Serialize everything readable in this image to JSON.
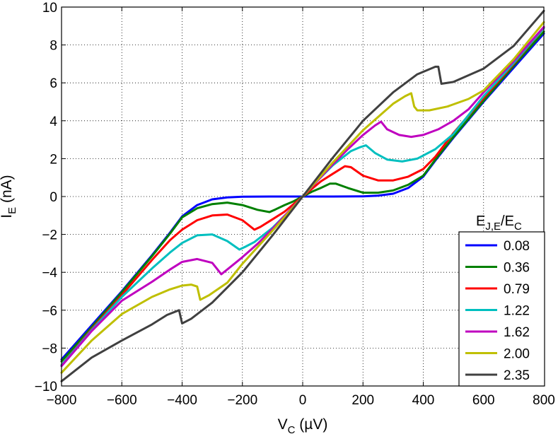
{
  "chart_data": {
    "type": "line",
    "title": "",
    "xlabel": {
      "main": "V",
      "sub": "C",
      "unit": " (µV)"
    },
    "ylabel": {
      "main": "I",
      "sub": "E",
      "unit": " (nA)"
    },
    "xlim": [
      -800,
      800
    ],
    "ylim": [
      -10,
      10
    ],
    "xticks": [
      -800,
      -600,
      -400,
      -200,
      0,
      200,
      400,
      600,
      800
    ],
    "yticks": [
      -10,
      -8,
      -6,
      -4,
      -2,
      0,
      2,
      4,
      6,
      8,
      10
    ],
    "xtick_labels": [
      "−800",
      "−600",
      "−400",
      "−200",
      "0",
      "200",
      "400",
      "600",
      "800"
    ],
    "ytick_labels": [
      "−10",
      "−8",
      "−6",
      "−4",
      "−2",
      "0",
      "2",
      "4",
      "6",
      "8",
      "10"
    ],
    "grid": true,
    "legend": {
      "placement": "bottom-right",
      "title": {
        "main": "E",
        "sub1": "J,E",
        "slash": "/E",
        "sub2": "C"
      }
    },
    "series": [
      {
        "name": "0.08",
        "color": "#0000ff",
        "points": [
          [
            -800,
            -8.6
          ],
          [
            -700,
            -6.8
          ],
          [
            -600,
            -5.0
          ],
          [
            -500,
            -3.1
          ],
          [
            -440,
            -1.9
          ],
          [
            -400,
            -1.05
          ],
          [
            -350,
            -0.45
          ],
          [
            -300,
            -0.15
          ],
          [
            -250,
            -0.05
          ],
          [
            -200,
            -0.01
          ],
          [
            -100,
            0
          ],
          [
            0,
            0
          ],
          [
            100,
            0
          ],
          [
            200,
            0.01
          ],
          [
            250,
            0.05
          ],
          [
            300,
            0.15
          ],
          [
            350,
            0.45
          ],
          [
            400,
            1.05
          ],
          [
            440,
            1.9
          ],
          [
            500,
            3.1
          ],
          [
            600,
            5.0
          ],
          [
            700,
            6.8
          ],
          [
            800,
            8.6
          ]
        ]
      },
      {
        "name": "0.36",
        "color": "#008000",
        "points": [
          [
            -800,
            -8.7
          ],
          [
            -700,
            -6.9
          ],
          [
            -600,
            -5.05
          ],
          [
            -500,
            -3.15
          ],
          [
            -440,
            -1.95
          ],
          [
            -400,
            -1.1
          ],
          [
            -350,
            -0.62
          ],
          [
            -300,
            -0.4
          ],
          [
            -250,
            -0.32
          ],
          [
            -200,
            -0.45
          ],
          [
            -150,
            -0.7
          ],
          [
            -110,
            -0.82
          ],
          [
            -90,
            -0.68
          ],
          [
            -60,
            -0.45
          ],
          [
            -30,
            -0.25
          ],
          [
            0,
            0
          ],
          [
            30,
            0.25
          ],
          [
            60,
            0.45
          ],
          [
            90,
            0.68
          ],
          [
            110,
            0.68
          ],
          [
            150,
            0.45
          ],
          [
            200,
            0.2
          ],
          [
            250,
            0.2
          ],
          [
            300,
            0.32
          ],
          [
            350,
            0.62
          ],
          [
            400,
            1.1
          ],
          [
            440,
            1.95
          ],
          [
            500,
            3.15
          ],
          [
            600,
            5.05
          ],
          [
            700,
            6.9
          ],
          [
            800,
            8.7
          ]
        ]
      },
      {
        "name": "0.79",
        "color": "#ff0000",
        "points": [
          [
            -800,
            -8.9
          ],
          [
            -700,
            -7.0
          ],
          [
            -600,
            -5.2
          ],
          [
            -500,
            -3.35
          ],
          [
            -440,
            -2.3
          ],
          [
            -400,
            -1.75
          ],
          [
            -350,
            -1.25
          ],
          [
            -300,
            -1.0
          ],
          [
            -250,
            -0.95
          ],
          [
            -200,
            -1.25
          ],
          [
            -160,
            -1.75
          ],
          [
            -140,
            -1.6
          ],
          [
            -100,
            -1.2
          ],
          [
            -60,
            -0.8
          ],
          [
            -30,
            -0.4
          ],
          [
            0,
            0
          ],
          [
            30,
            0.4
          ],
          [
            60,
            0.8
          ],
          [
            100,
            1.2
          ],
          [
            140,
            1.6
          ],
          [
            160,
            1.55
          ],
          [
            200,
            1.1
          ],
          [
            250,
            0.85
          ],
          [
            300,
            0.85
          ],
          [
            350,
            1.05
          ],
          [
            400,
            1.45
          ],
          [
            440,
            2.1
          ],
          [
            500,
            3.35
          ],
          [
            600,
            5.2
          ],
          [
            700,
            7.0
          ],
          [
            800,
            8.9
          ]
        ]
      },
      {
        "name": "1.22",
        "color": "#00bfbf",
        "points": [
          [
            -800,
            -8.9
          ],
          [
            -700,
            -7.05
          ],
          [
            -600,
            -5.3
          ],
          [
            -500,
            -3.8
          ],
          [
            -440,
            -2.95
          ],
          [
            -400,
            -2.45
          ],
          [
            -350,
            -2.05
          ],
          [
            -300,
            -2.0
          ],
          [
            -250,
            -2.35
          ],
          [
            -210,
            -2.8
          ],
          [
            -190,
            -2.65
          ],
          [
            -160,
            -2.4
          ],
          [
            -100,
            -1.65
          ],
          [
            -50,
            -0.85
          ],
          [
            0,
            0
          ],
          [
            50,
            0.85
          ],
          [
            100,
            1.65
          ],
          [
            160,
            2.4
          ],
          [
            190,
            2.6
          ],
          [
            210,
            2.7
          ],
          [
            240,
            2.3
          ],
          [
            280,
            1.95
          ],
          [
            330,
            1.85
          ],
          [
            380,
            2.0
          ],
          [
            440,
            2.5
          ],
          [
            500,
            3.3
          ],
          [
            600,
            5.3
          ],
          [
            700,
            7.05
          ],
          [
            800,
            8.9
          ]
        ]
      },
      {
        "name": "1.62",
        "color": "#bf00bf",
        "points": [
          [
            -800,
            -8.95
          ],
          [
            -700,
            -7.1
          ],
          [
            -600,
            -5.5
          ],
          [
            -500,
            -4.5
          ],
          [
            -440,
            -3.85
          ],
          [
            -400,
            -3.45
          ],
          [
            -350,
            -3.3
          ],
          [
            -300,
            -3.5
          ],
          [
            -270,
            -4.1
          ],
          [
            -250,
            -3.85
          ],
          [
            -200,
            -3.2
          ],
          [
            -150,
            -2.5
          ],
          [
            -100,
            -1.7
          ],
          [
            -50,
            -0.85
          ],
          [
            0,
            0
          ],
          [
            50,
            0.85
          ],
          [
            100,
            1.7
          ],
          [
            150,
            2.5
          ],
          [
            200,
            3.25
          ],
          [
            240,
            3.75
          ],
          [
            260,
            3.95
          ],
          [
            280,
            3.55
          ],
          [
            320,
            3.25
          ],
          [
            360,
            3.15
          ],
          [
            400,
            3.25
          ],
          [
            450,
            3.55
          ],
          [
            500,
            4.0
          ],
          [
            550,
            4.6
          ],
          [
            600,
            5.5
          ],
          [
            700,
            7.15
          ],
          [
            800,
            8.95
          ]
        ]
      },
      {
        "name": "2.00",
        "color": "#bfbf00",
        "points": [
          [
            -800,
            -9.3
          ],
          [
            -700,
            -7.6
          ],
          [
            -600,
            -6.2
          ],
          [
            -500,
            -5.3
          ],
          [
            -440,
            -4.9
          ],
          [
            -400,
            -4.7
          ],
          [
            -370,
            -4.65
          ],
          [
            -350,
            -4.75
          ],
          [
            -340,
            -5.45
          ],
          [
            -310,
            -5.2
          ],
          [
            -250,
            -4.55
          ],
          [
            -200,
            -3.55
          ],
          [
            -100,
            -1.8
          ],
          [
            0,
            0
          ],
          [
            100,
            1.8
          ],
          [
            200,
            3.5
          ],
          [
            300,
            4.9
          ],
          [
            340,
            5.3
          ],
          [
            360,
            5.45
          ],
          [
            370,
            4.75
          ],
          [
            380,
            4.55
          ],
          [
            420,
            4.55
          ],
          [
            480,
            4.75
          ],
          [
            550,
            5.15
          ],
          [
            600,
            5.6
          ],
          [
            700,
            7.25
          ],
          [
            800,
            9.2
          ]
        ]
      },
      {
        "name": "2.35",
        "color": "#404040",
        "points": [
          [
            -800,
            -9.75
          ],
          [
            -700,
            -8.5
          ],
          [
            -600,
            -7.6
          ],
          [
            -500,
            -6.75
          ],
          [
            -450,
            -6.25
          ],
          [
            -410,
            -6.0
          ],
          [
            -400,
            -6.7
          ],
          [
            -370,
            -6.45
          ],
          [
            -300,
            -5.6
          ],
          [
            -200,
            -4.0
          ],
          [
            -100,
            -2.05
          ],
          [
            0,
            0
          ],
          [
            100,
            2.05
          ],
          [
            200,
            4.0
          ],
          [
            300,
            5.5
          ],
          [
            380,
            6.45
          ],
          [
            440,
            6.85
          ],
          [
            450,
            6.85
          ],
          [
            460,
            5.95
          ],
          [
            500,
            6.05
          ],
          [
            600,
            6.75
          ],
          [
            700,
            7.95
          ],
          [
            800,
            9.8
          ]
        ]
      }
    ]
  }
}
